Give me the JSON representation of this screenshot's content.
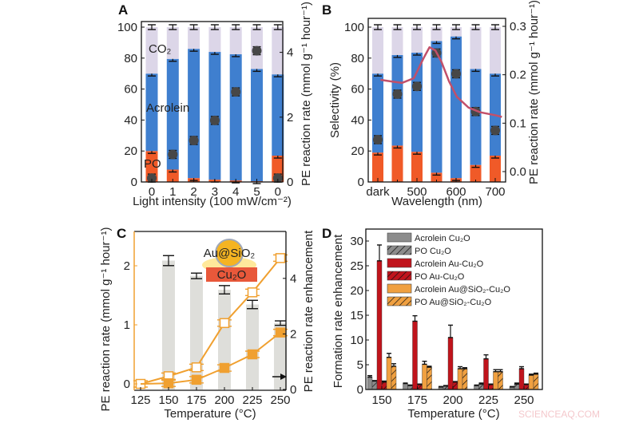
{
  "watermark": "SCIENCEAQ.COM",
  "colors": {
    "po": "#f05a28",
    "acrolein": "#3f7fcf",
    "co2": "#dcd6e8",
    "rate_dot": "#474747",
    "spectrum_curve": "#c2506a",
    "orange": "#f0a030",
    "enhancement_bar": "#dededa",
    "cu2o_grey": "#8c8c8c",
    "au_red": "#c0141c",
    "au_sio2_orange": "#f0a040"
  },
  "chart_data": [
    {
      "panel": "A",
      "type": "bar",
      "stacked": true,
      "categories": [
        "0",
        "1",
        "2",
        "3",
        "4",
        "5",
        "0"
      ],
      "xlabel": "Light intensity (100 mW/cm⁻²)",
      "ylabel": "",
      "y2label": "PE reaction rate (mmol g⁻¹ hour⁻¹)",
      "ylim": [
        0,
        100
      ],
      "yticks": [
        "0",
        "20",
        "40",
        "60",
        "80",
        "100"
      ],
      "y2ticks": [
        "0",
        "2",
        "4"
      ],
      "series": [
        {
          "name": "PO",
          "values": [
            20,
            8,
            2.5,
            1.5,
            1,
            0.5,
            17
          ]
        },
        {
          "name": "Acrolein",
          "values": [
            50,
            71.5,
            83.5,
            82.5,
            81.5,
            72.5,
            52.5
          ]
        },
        {
          "name": "CO₂",
          "values": [
            30,
            20.5,
            14,
            16,
            17.5,
            27,
            30.5
          ]
        }
      ],
      "rate": {
        "axis": "right",
        "values": [
          0.12,
          0.85,
          1.28,
          1.9,
          2.78,
          4.05,
          0.12
        ]
      }
    },
    {
      "panel": "B",
      "type": "bar",
      "stacked": true,
      "categories": [
        "dark",
        "450",
        "500",
        "550",
        "600",
        "650",
        "700"
      ],
      "xticks": [
        "dark",
        "500",
        "600",
        "700"
      ],
      "xlabel": "Wavelength (nm)",
      "ylabel": "Selectivity (%)",
      "y2label": "PE reaction rate (mmol g⁻¹ hour⁻¹)",
      "ylim": [
        0,
        100
      ],
      "yticks": [
        "0",
        "20",
        "40",
        "60",
        "80",
        "100"
      ],
      "y2ticks": [
        "0.0",
        "0.1",
        "0.2",
        "0.3"
      ],
      "series": [
        {
          "name": "PO",
          "values": [
            19,
            23.5,
            19.5,
            6,
            2.5,
            11,
            17
          ]
        },
        {
          "name": "Acrolein",
          "values": [
            51,
            58.5,
            64,
            85,
            91.5,
            62,
            53
          ]
        },
        {
          "name": "CO₂",
          "values": [
            30,
            18,
            16.5,
            9,
            6,
            27,
            30
          ]
        }
      ],
      "rate": {
        "axis": "right",
        "values": [
          0.066,
          0.16,
          0.176,
          0.245,
          0.202,
          0.124,
          0.085
        ]
      },
      "spectrum_curve": {
        "x_nm": [
          405,
          430,
          460,
          490,
          515,
          530,
          545,
          560,
          580,
          600,
          630,
          660,
          700,
          715
        ],
        "y_left_axis_units": [
          66,
          65,
          64,
          67,
          80,
          87,
          85,
          78,
          65,
          55,
          48,
          45,
          43,
          42
        ]
      }
    },
    {
      "panel": "C",
      "type": "line",
      "x": [
        125,
        150,
        175,
        200,
        225,
        250
      ],
      "xlabel": "Temperature (°C)",
      "ylabel": "PE reaction rate (mmol g⁻¹ hour⁻¹)",
      "y2label": "PE reaction rate enhancement",
      "yticks": [
        "0",
        "1",
        "2"
      ],
      "y2ticks": [
        "0",
        "2",
        "4"
      ],
      "series": [
        {
          "marker": "open-square",
          "axis": "left",
          "values": [
            0,
            0.13,
            0.28,
            1.03,
            1.55,
            2.13
          ]
        },
        {
          "marker": "filled-square",
          "axis": "left",
          "values": [
            0,
            0.01,
            0.07,
            0.27,
            0.5,
            0.87
          ]
        }
      ],
      "enhancement_bars": {
        "axis": "right",
        "x": [
          150,
          175,
          200,
          225,
          250
        ],
        "values": [
          4.64,
          4.09,
          3.59,
          3.06,
          2.39
        ],
        "errors": [
          0.18,
          0.1,
          0.15,
          0.15,
          0.08
        ]
      },
      "inset": {
        "particle_label": "Au@SiO₂",
        "substrate_label": "Cu₂O"
      }
    },
    {
      "panel": "D",
      "type": "bar",
      "categories": [
        "150",
        "175",
        "200",
        "225",
        "250"
      ],
      "xlabel": "Temperature (°C)",
      "ylabel": "Formation rate enhancement",
      "yticks": [
        "0",
        "5",
        "10",
        "15",
        "20",
        "25",
        "30"
      ],
      "legend": "top-left",
      "series": [
        {
          "name": "Acrolein Cu₂O",
          "color": "#8c8c8c",
          "hatched": false,
          "values": [
            2.5,
            1.2,
            0.5,
            0.8,
            0.5
          ],
          "errors": [
            0.3,
            0.1,
            0.1,
            0.1,
            0.1
          ]
        },
        {
          "name": "PO Cu₂O",
          "color": "#8c8c8c",
          "hatched": true,
          "values": [
            1.7,
            0.8,
            0.7,
            1.1,
            1.1
          ],
          "errors": [
            0.1,
            0.1,
            0.1,
            0.2,
            0.2
          ]
        },
        {
          "name": "Acrolein Au-Cu₂O",
          "color": "#c0141c",
          "hatched": false,
          "values": [
            26,
            13.8,
            10.5,
            6.2,
            4.2
          ],
          "errors": [
            3.2,
            1.1,
            2.5,
            0.8,
            0.4
          ]
        },
        {
          "name": "PO Au-Cu₂O",
          "color": "#c0141c",
          "hatched": true,
          "values": [
            1.5,
            1.0,
            1.5,
            1.0,
            1.0
          ],
          "errors": [
            0.2,
            0.1,
            0.1,
            0.1,
            0.1
          ]
        },
        {
          "name": "Acrolein Au@SiO₂-Cu₂O",
          "color": "#f0a040",
          "hatched": false,
          "values": [
            6.5,
            5.1,
            4.2,
            3.6,
            2.9
          ],
          "errors": [
            0.8,
            0.6,
            0.4,
            0.4,
            0.2
          ]
        },
        {
          "name": "PO Au@SiO₂-Cu₂O",
          "color": "#f0a040",
          "hatched": true,
          "values": [
            4.7,
            4.5,
            4.2,
            3.6,
            3.1
          ],
          "errors": [
            0.5,
            0.2,
            0.2,
            0.4,
            0.2
          ]
        }
      ]
    }
  ]
}
